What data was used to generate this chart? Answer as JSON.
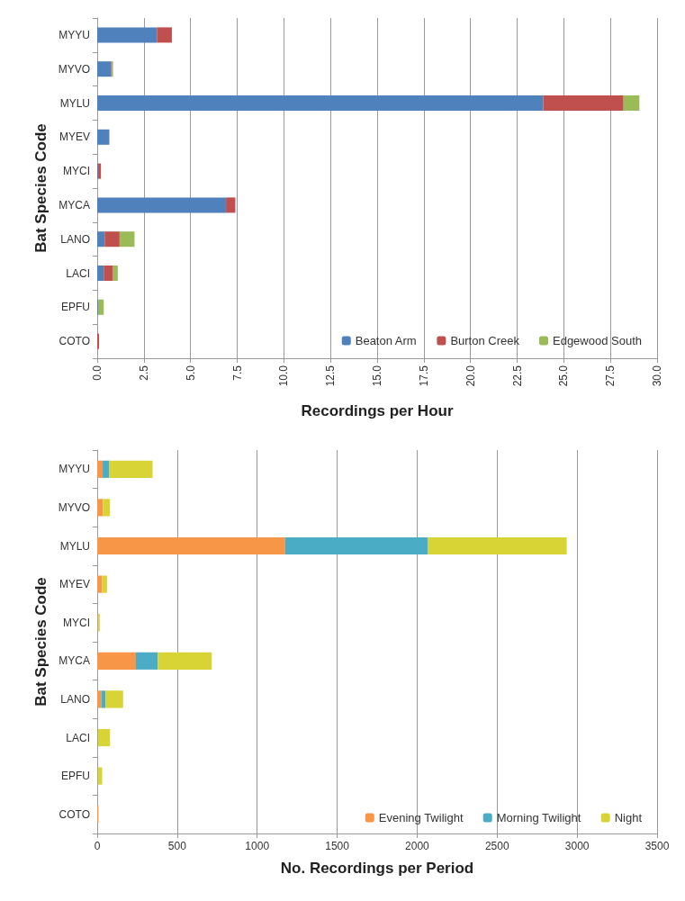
{
  "chart_data": [
    {
      "type": "bar",
      "orientation": "horizontal",
      "stacked": true,
      "ylabel": "Bat Species Code",
      "xlabel": "Recordings per Hour",
      "categories": [
        "MYYU",
        "MYVO",
        "MYLU",
        "MYEV",
        "MYCI",
        "MYCA",
        "LANO",
        "LACI",
        "EPFU",
        "COTO"
      ],
      "series": [
        {
          "name": "Beaton Arm",
          "color": "#4f81bd",
          "values": [
            3.2,
            0.75,
            23.9,
            0.65,
            0.05,
            6.9,
            0.4,
            0.35,
            0.05,
            0
          ]
        },
        {
          "name": "Burton Creek",
          "color": "#c0504d",
          "values": [
            0.8,
            0.05,
            4.3,
            0,
            0.15,
            0.5,
            0.8,
            0.5,
            0,
            0.1
          ]
        },
        {
          "name": "Edgewood South",
          "color": "#9bbb59",
          "values": [
            0,
            0.05,
            0.85,
            0,
            0,
            0,
            0.8,
            0.25,
            0.3,
            0
          ]
        }
      ],
      "xlim": [
        0,
        30
      ],
      "xticks": [
        {
          "value": 0,
          "label": "0.0"
        },
        2.5,
        {
          "value": 5,
          "label": "5.0"
        },
        7.5,
        {
          "value": 10,
          "label": "10.0"
        },
        12.5,
        {
          "value": 15,
          "label": "15.0"
        },
        17.5,
        {
          "value": 20,
          "label": "20.0"
        },
        22.5,
        {
          "value": 25,
          "label": "25.0"
        },
        27.5,
        {
          "value": 30,
          "label": "30.0"
        }
      ],
      "grid": "x",
      "legend": "bottom right"
    },
    {
      "type": "bar",
      "orientation": "horizontal",
      "stacked": true,
      "ylabel": "Bat Species Code",
      "xlabel": "No. Recordings per Period",
      "categories": [
        "MYYU",
        "MYVO",
        "MYLU",
        "MYEV",
        "MYCI",
        "MYCA",
        "LANO",
        "LACI",
        "EPFU",
        "COTO"
      ],
      "series": [
        {
          "name": "Evening Twilight",
          "color": "#f79646",
          "values": [
            34,
            36,
            1175,
            31,
            5,
            242,
            25,
            3,
            2,
            8
          ]
        },
        {
          "name": "Morning Twilight",
          "color": "#4bacc6",
          "values": [
            42,
            0,
            893,
            0,
            3,
            137,
            27,
            2,
            2,
            0
          ]
        },
        {
          "name": "Night",
          "color": "#d8d435",
          "values": [
            270,
            44,
            867,
            30,
            8,
            337,
            110,
            75,
            27,
            0
          ]
        }
      ],
      "xlim": [
        0,
        3500
      ],
      "xticks": [
        0,
        500,
        1000,
        1500,
        2000,
        2500,
        3000,
        3500
      ],
      "grid": "x",
      "legend": "bottom right"
    }
  ]
}
